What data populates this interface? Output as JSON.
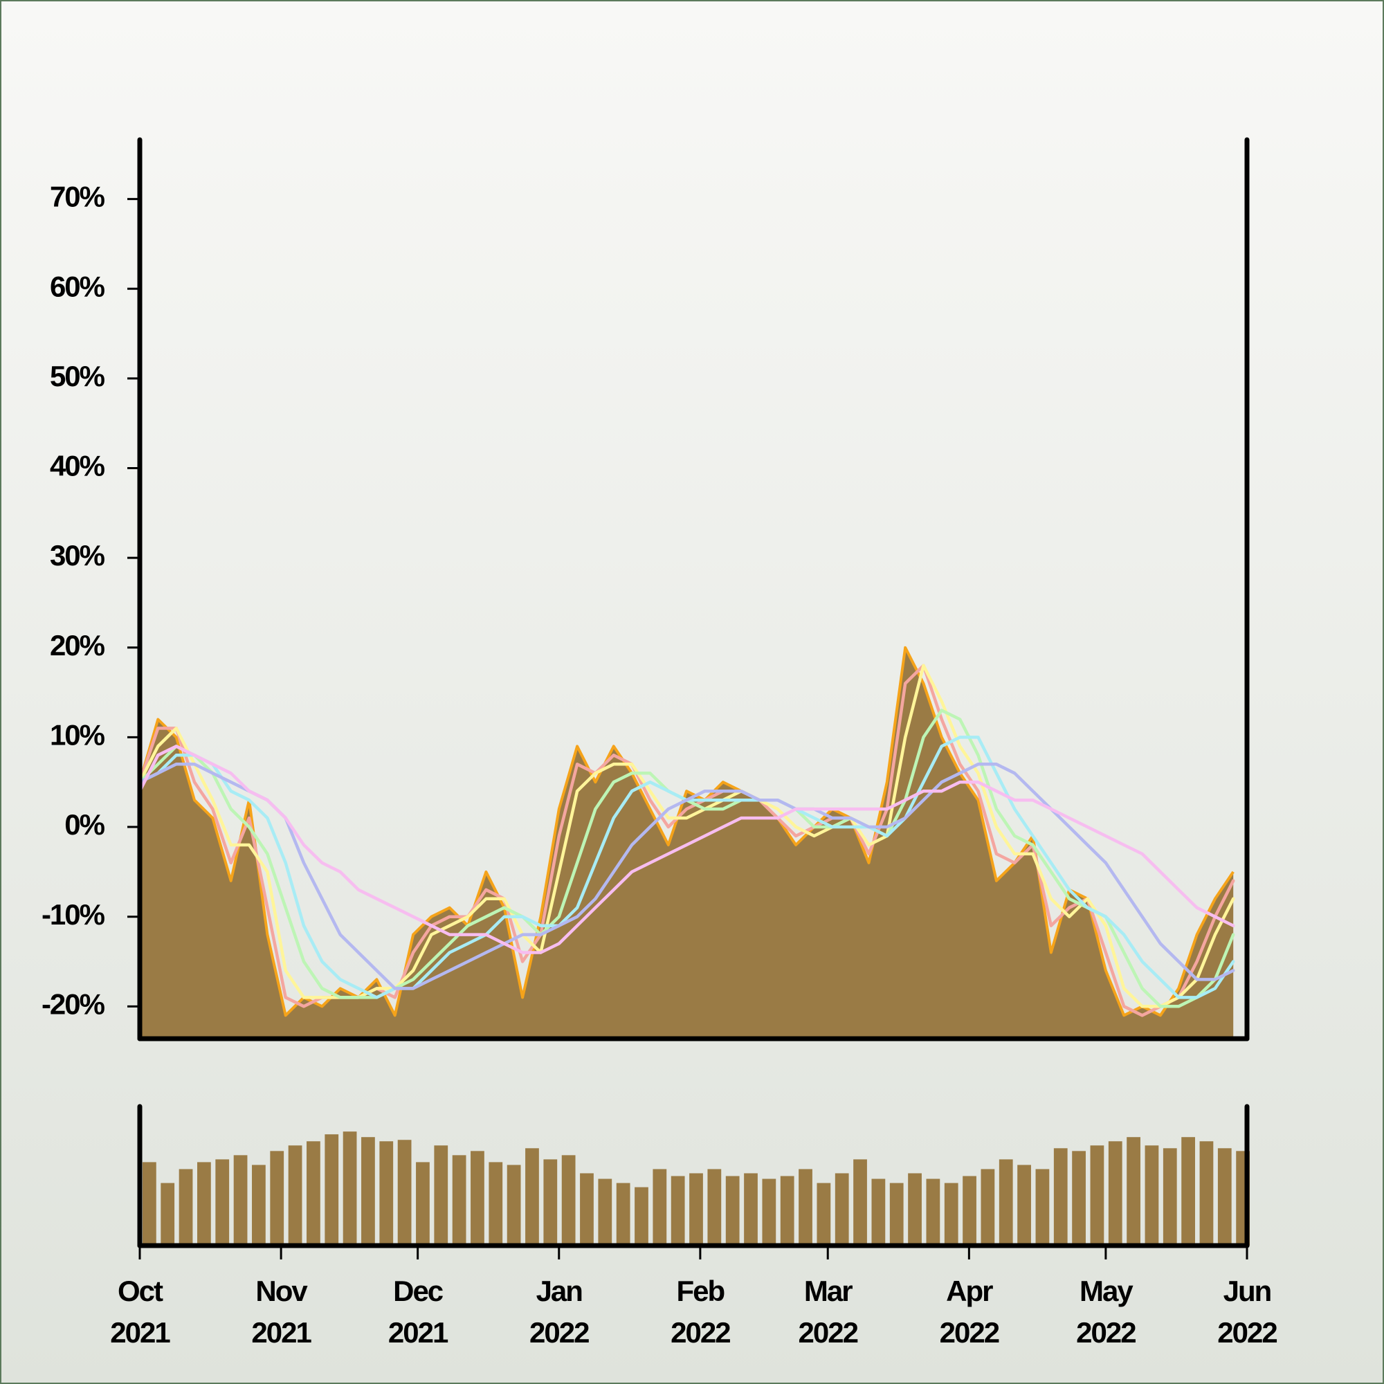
{
  "chart_data": [
    {
      "type": "area",
      "xlim": [
        "2021-10-01",
        "2022-06-01"
      ],
      "ylim": [
        -23.6,
        76.6
      ],
      "yticks": [
        {
          "value": -20,
          "label": "-20%"
        },
        {
          "value": -10,
          "label": "-10%"
        },
        {
          "value": 0,
          "label": "0%"
        },
        {
          "value": 10,
          "label": "10%"
        },
        {
          "value": 20,
          "label": "20%"
        },
        {
          "value": 30,
          "label": "30%"
        },
        {
          "value": 40,
          "label": "40%"
        },
        {
          "value": 50,
          "label": "50%"
        },
        {
          "value": 60,
          "label": "60%"
        },
        {
          "value": 70,
          "label": "70%"
        }
      ],
      "x": [
        "2021-10-01",
        "2021-10-05",
        "2021-10-09",
        "2021-10-13",
        "2021-10-17",
        "2021-10-21",
        "2021-10-25",
        "2021-10-29",
        "2021-11-02",
        "2021-11-06",
        "2021-11-10",
        "2021-11-14",
        "2021-11-18",
        "2021-11-22",
        "2021-11-26",
        "2021-11-30",
        "2021-12-04",
        "2021-12-08",
        "2021-12-12",
        "2021-12-16",
        "2021-12-20",
        "2021-12-24",
        "2021-12-28",
        "2022-01-01",
        "2022-01-05",
        "2022-01-09",
        "2022-01-13",
        "2022-01-17",
        "2022-01-21",
        "2022-01-25",
        "2022-01-29",
        "2022-02-02",
        "2022-02-06",
        "2022-02-10",
        "2022-02-14",
        "2022-02-18",
        "2022-02-22",
        "2022-02-26",
        "2022-03-02",
        "2022-03-06",
        "2022-03-10",
        "2022-03-14",
        "2022-03-18",
        "2022-03-22",
        "2022-03-26",
        "2022-03-30",
        "2022-04-03",
        "2022-04-07",
        "2022-04-11",
        "2022-04-15",
        "2022-04-19",
        "2022-04-23",
        "2022-04-27",
        "2022-05-01",
        "2022-05-05",
        "2022-05-09",
        "2022-05-13",
        "2022-05-17",
        "2022-05-21",
        "2022-05-25",
        "2022-05-29"
      ],
      "series": [
        {
          "color": "#9a7b45",
          "edge_color": "#f5a31a",
          "values": [
            5,
            12,
            10,
            3,
            1,
            -6,
            3,
            -12,
            -21,
            -19,
            -20,
            -18,
            -19,
            -17,
            -21,
            -12,
            -10,
            -9,
            -11,
            -5,
            -9,
            -19,
            -10,
            2,
            9,
            5,
            9,
            6,
            2,
            -2,
            4,
            3,
            5,
            4,
            3,
            1,
            -2,
            0,
            2,
            1,
            -4,
            5,
            20,
            16,
            10,
            6,
            3,
            -6,
            -4,
            -1,
            -14,
            -7,
            -8,
            -16,
            -21,
            -20,
            -21,
            -18,
            -12,
            -8,
            -5
          ]
        },
        {
          "color": "#f4a6a0",
          "values": [
            5,
            11,
            11,
            5,
            2,
            -4,
            1,
            -9,
            -19,
            -20,
            -19,
            -19,
            -19,
            -18,
            -19,
            -14,
            -11,
            -10,
            -10,
            -7,
            -8,
            -15,
            -12,
            -1,
            7,
            6,
            8,
            7,
            3,
            0,
            2,
            3,
            4,
            4,
            3,
            1,
            -1,
            0,
            1,
            1,
            -3,
            2,
            16,
            18,
            12,
            7,
            4,
            -3,
            -4,
            -2,
            -11,
            -9,
            -8,
            -14,
            -20,
            -21,
            -20,
            -19,
            -15,
            -10,
            -6
          ]
        },
        {
          "color": "#fff59a",
          "values": [
            5,
            9,
            11,
            7,
            3,
            -2,
            -2,
            -5,
            -16,
            -19,
            -19,
            -19,
            -19,
            -18,
            -18,
            -16,
            -12,
            -11,
            -10,
            -8,
            -8,
            -12,
            -14,
            -5,
            4,
            6,
            7,
            7,
            4,
            1,
            1,
            2,
            3,
            4,
            3,
            2,
            0,
            -1,
            0,
            1,
            -2,
            -1,
            10,
            18,
            14,
            9,
            6,
            0,
            -3,
            -3,
            -8,
            -10,
            -8,
            -11,
            -18,
            -20,
            -20,
            -19,
            -17,
            -12,
            -8
          ]
        },
        {
          "color": "#bdf5b5",
          "values": [
            5,
            7,
            9,
            8,
            6,
            2,
            0,
            -3,
            -9,
            -15,
            -18,
            -19,
            -19,
            -19,
            -18,
            -17,
            -15,
            -13,
            -11,
            -10,
            -9,
            -10,
            -12,
            -10,
            -4,
            2,
            5,
            6,
            6,
            4,
            3,
            2,
            2,
            3,
            3,
            3,
            2,
            0,
            0,
            1,
            0,
            -1,
            3,
            10,
            13,
            12,
            8,
            2,
            -1,
            -2,
            -5,
            -8,
            -9,
            -10,
            -14,
            -18,
            -20,
            -20,
            -19,
            -17,
            -12
          ]
        },
        {
          "color": "#a8ecf5",
          "values": [
            5,
            6,
            8,
            8,
            7,
            4,
            3,
            1,
            -4,
            -11,
            -15,
            -17,
            -18,
            -19,
            -18,
            -18,
            -16,
            -14,
            -13,
            -12,
            -10,
            -10,
            -11,
            -11,
            -9,
            -4,
            1,
            4,
            5,
            4,
            3,
            3,
            3,
            3,
            3,
            3,
            2,
            1,
            0,
            0,
            0,
            -1,
            1,
            5,
            9,
            10,
            10,
            6,
            2,
            -1,
            -4,
            -7,
            -9,
            -10,
            -12,
            -15,
            -17,
            -19,
            -19,
            -18,
            -15
          ]
        },
        {
          "color": "#b4b8f0",
          "values": [
            5,
            6,
            7,
            7,
            6,
            5,
            4,
            3,
            1,
            -4,
            -8,
            -12,
            -14,
            -16,
            -18,
            -18,
            -17,
            -16,
            -15,
            -14,
            -13,
            -12,
            -12,
            -11,
            -10,
            -8,
            -5,
            -2,
            0,
            2,
            3,
            4,
            4,
            4,
            3,
            3,
            2,
            2,
            1,
            1,
            0,
            0,
            1,
            3,
            5,
            6,
            7,
            7,
            6,
            4,
            2,
            0,
            -2,
            -4,
            -7,
            -10,
            -13,
            -15,
            -17,
            -17,
            -16
          ]
        },
        {
          "color": "#f7bdf0",
          "values": [
            4,
            8,
            9,
            8,
            7,
            6,
            4,
            3,
            1,
            -2,
            -4,
            -5,
            -7,
            -8,
            -9,
            -10,
            -11,
            -12,
            -12,
            -12,
            -13,
            -14,
            -14,
            -13,
            -11,
            -9,
            -7,
            -5,
            -4,
            -3,
            -2,
            -1,
            0,
            1,
            1,
            1,
            2,
            2,
            2,
            2,
            2,
            2,
            3,
            4,
            4,
            5,
            5,
            4,
            3,
            3,
            2,
            1,
            0,
            -1,
            -2,
            -3,
            -5,
            -7,
            -9,
            -10,
            -11
          ]
        }
      ]
    },
    {
      "type": "bar",
      "xlim": [
        "2021-10-01",
        "2022-06-01"
      ],
      "ylim": [
        0,
        100
      ],
      "color": "#9a7b45",
      "xticks": [
        {
          "value": "2021-10-01",
          "label": "Oct\n2021"
        },
        {
          "value": "2021-11-01",
          "label": "Nov\n2021"
        },
        {
          "value": "2021-12-01",
          "label": "Dec\n2021"
        },
        {
          "value": "2022-01-01",
          "label": "Jan\n2022"
        },
        {
          "value": "2022-02-01",
          "label": "Feb\n2022"
        },
        {
          "value": "2022-03-01",
          "label": "Mar\n2022"
        },
        {
          "value": "2022-04-01",
          "label": "Apr\n2022"
        },
        {
          "value": "2022-05-01",
          "label": "May\n2022"
        },
        {
          "value": "2022-06-01",
          "label": "Jun\n2022"
        }
      ],
      "x": [
        "2021-10-01",
        "2021-10-05",
        "2021-10-09",
        "2021-10-13",
        "2021-10-17",
        "2021-10-21",
        "2021-10-25",
        "2021-10-29",
        "2021-11-02",
        "2021-11-06",
        "2021-11-10",
        "2021-11-14",
        "2021-11-18",
        "2021-11-22",
        "2021-11-26",
        "2021-11-30",
        "2021-12-04",
        "2021-12-08",
        "2021-12-12",
        "2021-12-16",
        "2021-12-20",
        "2021-12-24",
        "2021-12-28",
        "2022-01-01",
        "2022-01-05",
        "2022-01-09",
        "2022-01-13",
        "2022-01-17",
        "2022-01-21",
        "2022-01-25",
        "2022-01-29",
        "2022-02-02",
        "2022-02-06",
        "2022-02-10",
        "2022-02-14",
        "2022-02-18",
        "2022-02-22",
        "2022-02-26",
        "2022-03-02",
        "2022-03-06",
        "2022-03-10",
        "2022-03-14",
        "2022-03-18",
        "2022-03-22",
        "2022-03-26",
        "2022-03-30",
        "2022-04-03",
        "2022-04-07",
        "2022-04-11",
        "2022-04-15",
        "2022-04-19",
        "2022-04-23",
        "2022-04-27",
        "2022-05-01",
        "2022-05-05",
        "2022-05-09",
        "2022-05-13",
        "2022-05-17",
        "2022-05-21",
        "2022-05-25",
        "2022-05-29"
      ],
      "values": [
        60,
        45,
        55,
        60,
        62,
        65,
        58,
        68,
        72,
        75,
        80,
        82,
        78,
        75,
        76,
        60,
        72,
        65,
        68,
        60,
        58,
        70,
        62,
        65,
        52,
        48,
        45,
        42,
        55,
        50,
        52,
        55,
        50,
        52,
        48,
        50,
        55,
        45,
        52,
        62,
        48,
        45,
        52,
        48,
        45,
        50,
        55,
        62,
        58,
        55,
        70,
        68,
        72,
        75,
        78,
        72,
        70,
        78,
        75,
        70,
        68
      ]
    }
  ]
}
